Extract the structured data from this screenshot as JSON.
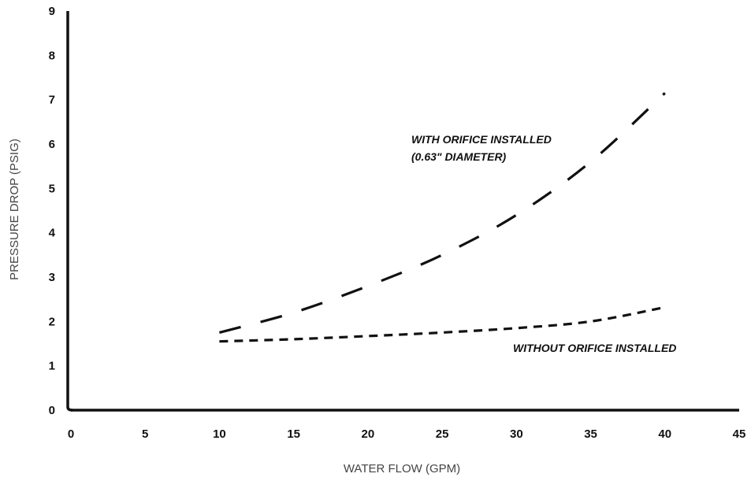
{
  "chart_data": {
    "type": "line",
    "title": "",
    "xlabel": "WATER FLOW (GPM)",
    "ylabel": "PRESSURE DROP (PSIG)",
    "xlim": [
      0,
      45
    ],
    "ylim": [
      0,
      9
    ],
    "xticks": [
      "0",
      "5",
      "10",
      "15",
      "20",
      "25",
      "30",
      "35",
      "40",
      "45"
    ],
    "yticks": [
      "0",
      "1",
      "2",
      "3",
      "4",
      "5",
      "6",
      "7",
      "8",
      "9"
    ],
    "grid": false,
    "series": [
      {
        "name": "WITH ORIFICE INSTALLED (0.63\" DIAMETER)",
        "label_lines": [
          "WITH ORIFICE INSTALLED",
          "(0.63\" DIAMETER)"
        ],
        "line_style": "long-dash",
        "x": [
          10,
          15,
          20,
          25,
          30,
          35,
          40
        ],
        "y": [
          1.75,
          2.2,
          2.8,
          3.5,
          4.4,
          5.6,
          7.15
        ]
      },
      {
        "name": "WITHOUT ORIFICE INSTALLED",
        "label_lines": [
          "WITHOUT ORIFICE INSTALLED"
        ],
        "line_style": "short-dash",
        "x": [
          10,
          15,
          20,
          25,
          30,
          35,
          40
        ],
        "y": [
          1.55,
          1.6,
          1.67,
          1.75,
          1.85,
          2.0,
          2.32
        ]
      }
    ]
  }
}
